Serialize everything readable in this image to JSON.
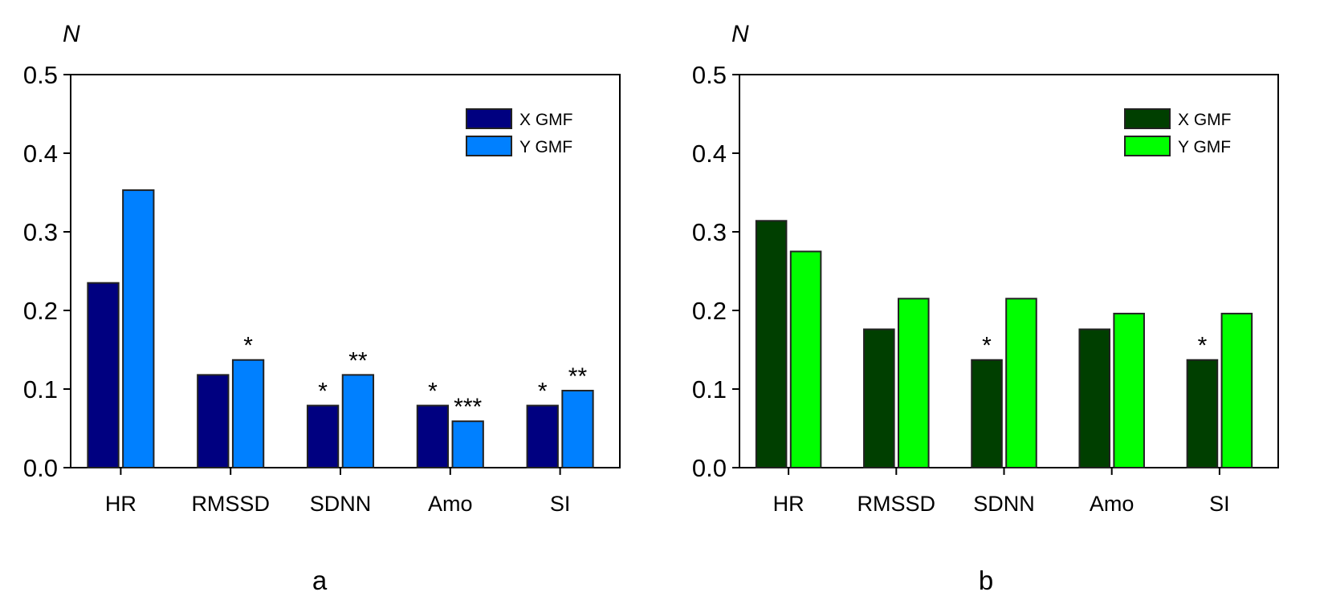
{
  "chart_data": [
    {
      "type": "bar",
      "panel_label": "a",
      "ylabel": "N",
      "ylim": [
        0,
        0.5
      ],
      "yticks": [
        "0.0",
        "0.1",
        "0.2",
        "0.3",
        "0.4",
        "0.5"
      ],
      "categories": [
        "HR",
        "RMSSD",
        "SDNN",
        "Amo",
        "SI"
      ],
      "legend_position": "top-right",
      "series": [
        {
          "name": "X GMF",
          "color": "#000080",
          "values": [
            0.235,
            0.118,
            0.079,
            0.079,
            0.079
          ],
          "annotations": [
            "",
            "",
            "*",
            "*",
            "*"
          ]
        },
        {
          "name": "Y GMF",
          "color": "#0080ff",
          "values": [
            0.353,
            0.137,
            0.118,
            0.059,
            0.098
          ],
          "annotations": [
            "",
            "*",
            "**",
            "***",
            "**"
          ]
        }
      ]
    },
    {
      "type": "bar",
      "panel_label": "b",
      "ylabel": "N",
      "ylim": [
        0,
        0.5
      ],
      "yticks": [
        "0.0",
        "0.1",
        "0.2",
        "0.3",
        "0.4",
        "0.5"
      ],
      "categories": [
        "HR",
        "RMSSD",
        "SDNN",
        "Amo",
        "SI"
      ],
      "legend_position": "top-right",
      "series": [
        {
          "name": "X GMF",
          "color": "#003f00",
          "values": [
            0.314,
            0.176,
            0.137,
            0.176,
            0.137
          ],
          "annotations": [
            "",
            "",
            "*",
            "",
            "*"
          ]
        },
        {
          "name": "Y GMF",
          "color": "#00ff00",
          "values": [
            0.275,
            0.215,
            0.215,
            0.196,
            0.196
          ],
          "annotations": [
            "",
            "",
            "",
            "",
            ""
          ]
        }
      ]
    }
  ]
}
